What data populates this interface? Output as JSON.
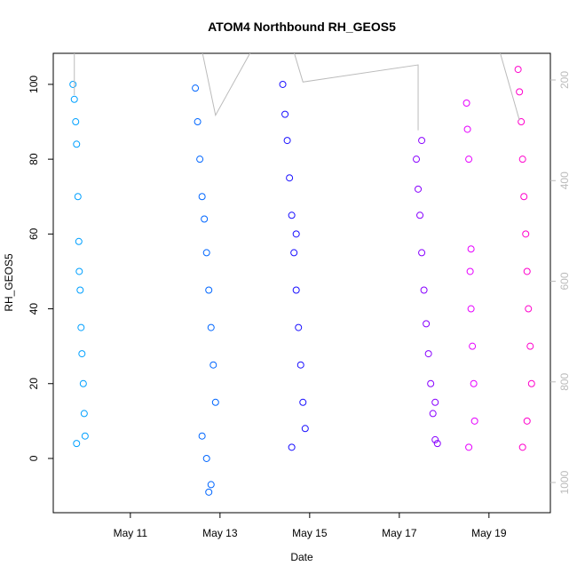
{
  "chart_data": {
    "type": "scatter",
    "title": "ATOM4 Northbound RH_GEOS5",
    "x_label": "Date",
    "y_label": "RH_GEOS5",
    "xlim": [
      9.28,
      20.37
    ],
    "xticks": [
      {
        "value": 11,
        "label": "May 11"
      },
      {
        "value": 13,
        "label": "May 13"
      },
      {
        "value": 15,
        "label": "May 15"
      },
      {
        "value": 17,
        "label": "May 17"
      },
      {
        "value": 19,
        "label": "May 19"
      }
    ],
    "ylim": [
      -14.5,
      108.3
    ],
    "yticks": [
      0,
      20,
      40,
      60,
      80,
      100
    ],
    "y2lim": [
      1060,
      147
    ],
    "y2ticks": [
      200,
      400,
      600,
      800,
      1000
    ],
    "y2_color": "#bbbbbb",
    "series": [
      {
        "color": "#00a0ff",
        "x": [
          9.72,
          9.75,
          9.78,
          9.8,
          9.83,
          9.85,
          9.88,
          9.9,
          9.92,
          9.95,
          9.97,
          9.99,
          9.8,
          9.86
        ],
        "values": [
          100,
          96,
          90,
          84,
          70,
          58,
          45,
          35,
          28,
          20,
          12,
          6,
          4,
          50
        ]
      },
      {
        "color": "#0066ff",
        "x": [
          12.45,
          12.5,
          12.55,
          12.6,
          12.65,
          12.7,
          12.75,
          12.8,
          12.85,
          12.9,
          12.6,
          12.7,
          12.8,
          12.75
        ],
        "values": [
          99,
          90,
          80,
          70,
          64,
          55,
          45,
          35,
          25,
          15,
          6,
          0,
          -7,
          -9
        ]
      },
      {
        "color": "#1a10ff",
        "x": [
          14.4,
          14.45,
          14.5,
          14.55,
          14.6,
          14.65,
          14.7,
          14.75,
          14.8,
          14.85,
          14.9,
          14.6,
          14.7
        ],
        "values": [
          100,
          92,
          85,
          75,
          65,
          55,
          45,
          35,
          25,
          15,
          8,
          3,
          60
        ]
      },
      {
        "color": "#8800ff",
        "x": [
          17.38,
          17.42,
          17.46,
          17.5,
          17.55,
          17.6,
          17.65,
          17.7,
          17.75,
          17.8,
          17.85,
          17.5,
          17.8
        ],
        "values": [
          80,
          72,
          65,
          55,
          45,
          36,
          28,
          20,
          12,
          5,
          4,
          85,
          15
        ]
      },
      {
        "color": "#e600ff",
        "x": [
          18.5,
          18.52,
          18.55,
          18.58,
          18.6,
          18.63,
          18.66,
          18.68,
          18.55,
          18.6
        ],
        "values": [
          95,
          88,
          80,
          50,
          40,
          30,
          20,
          10,
          3,
          56
        ]
      },
      {
        "color": "#ff00cc",
        "x": [
          19.65,
          19.68,
          19.72,
          19.75,
          19.78,
          19.82,
          19.85,
          19.88,
          19.92,
          19.95,
          19.75,
          19.85
        ],
        "values": [
          104,
          98,
          90,
          80,
          70,
          60,
          50,
          40,
          30,
          20,
          3,
          10
        ]
      },
      {
        "type": "line",
        "axis": "y2",
        "color": "#bbbbbb",
        "x": [
          9.75,
          9.75,
          9.9,
          9.9,
          12.5,
          12.5,
          12.9,
          13.73,
          14.5,
          14.5,
          14.85,
          17.42,
          17.42,
          17.7,
          17.7,
          18.55,
          18.55,
          19.24,
          19.68,
          19.9,
          19.9
        ],
        "values": [
          100,
          230,
          null,
          100,
          null,
          100,
          270,
          137,
          null,
          100,
          204,
          170,
          300,
          null,
          100,
          null,
          100,
          143,
          280,
          null,
          100
        ]
      }
    ]
  }
}
